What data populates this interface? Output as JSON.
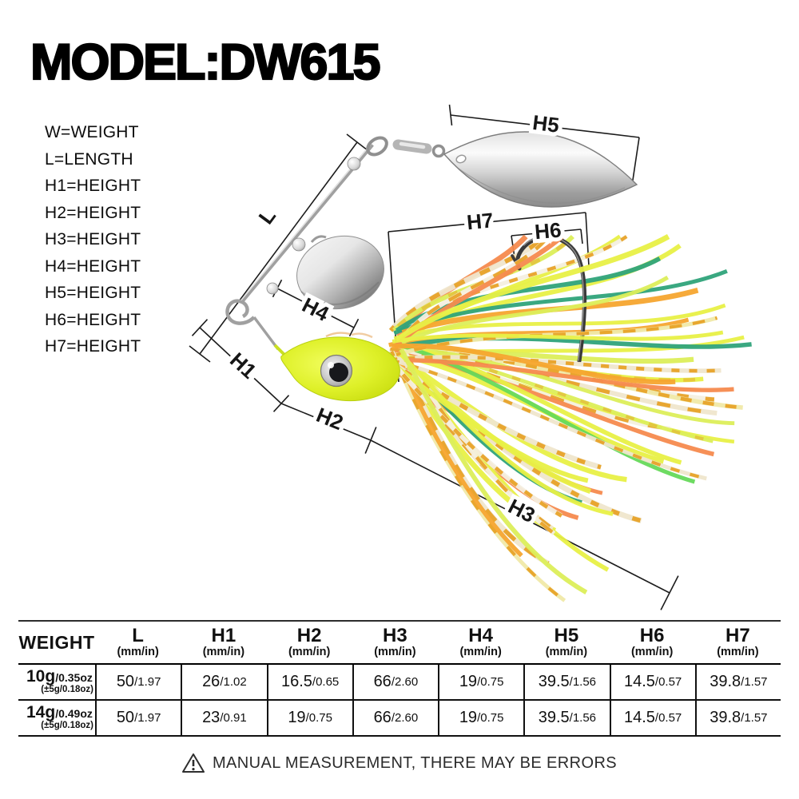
{
  "title": "MODEL:DW615",
  "legend": {
    "items": [
      "W=WEIGHT",
      "L=LENGTH",
      "H1=HEIGHT",
      "H2=HEIGHT",
      "H3=HEIGHT",
      "H4=HEIGHT",
      "H5=HEIGHT",
      "H6=HEIGHT",
      "H7=HEIGHT"
    ]
  },
  "diagram": {
    "labels": {
      "l": "L",
      "h1": "H1",
      "h2": "H2",
      "h3": "H3",
      "h4": "H4",
      "h5": "H5",
      "h6": "H6",
      "h7": "H7"
    }
  },
  "table": {
    "header": {
      "weight": "WEIGHT",
      "cols": [
        {
          "label": "L",
          "unit": "(mm/in)"
        },
        {
          "label": "H1",
          "unit": "(mm/in)"
        },
        {
          "label": "H2",
          "unit": "(mm/in)"
        },
        {
          "label": "H3",
          "unit": "(mm/in)"
        },
        {
          "label": "H4",
          "unit": "(mm/in)"
        },
        {
          "label": "H5",
          "unit": "(mm/in)"
        },
        {
          "label": "H6",
          "unit": "(mm/in)"
        },
        {
          "label": "H7",
          "unit": "(mm/in)"
        }
      ]
    },
    "rows": [
      {
        "weight_main": "10g",
        "weight_oz": "/0.35oz",
        "weight_tol": "(±5g/0.18oz)",
        "values": [
          {
            "main": "50",
            "sub": "/1.97"
          },
          {
            "main": "26",
            "sub": "/1.02"
          },
          {
            "main": "16.5",
            "sub": "/0.65"
          },
          {
            "main": "66",
            "sub": "/2.60"
          },
          {
            "main": "19",
            "sub": "/0.75"
          },
          {
            "main": "39.5",
            "sub": "/1.56"
          },
          {
            "main": "14.5",
            "sub": "/0.57"
          },
          {
            "main": "39.8",
            "sub": "/1.57"
          }
        ]
      },
      {
        "weight_main": "14g",
        "weight_oz": "/0.49oz",
        "weight_tol": "(±5g/0.18oz)",
        "values": [
          {
            "main": "50",
            "sub": "/1.97"
          },
          {
            "main": "23",
            "sub": "/0.91"
          },
          {
            "main": "19",
            "sub": "/0.75"
          },
          {
            "main": "66",
            "sub": "/2.60"
          },
          {
            "main": "19",
            "sub": "/0.75"
          },
          {
            "main": "39.5",
            "sub": "/1.56"
          },
          {
            "main": "14.5",
            "sub": "/0.57"
          },
          {
            "main": "39.8",
            "sub": "/1.57"
          }
        ]
      }
    ]
  },
  "footer": {
    "icon": "warning-triangle-icon",
    "warning": "MANUAL MEASUREMENT, THERE MAY BE ERRORS"
  },
  "colors": {
    "dim_line": "#1c1c1c",
    "head_chartreuse": "#d9ee1c",
    "hook": "#3a3a3a",
    "blade_silver": "#c9c9c9",
    "band_orange": "#e7a124",
    "skirt_palette": [
      {
        "c": "#e8f046",
        "w": 10,
        "band": 0.15
      },
      {
        "c": "#dcee5a",
        "w": 6,
        "band": 0.3
      },
      {
        "c": "#f0e9a8",
        "w": 6,
        "band": 0.9
      },
      {
        "c": "#efe6cc",
        "w": 9,
        "band": 1
      },
      {
        "c": "#f4efe0",
        "w": 5,
        "band": 1
      },
      {
        "c": "#f5a52f",
        "w": 4,
        "band": 0
      },
      {
        "c": "#f58a4e",
        "w": 4,
        "band": 0
      },
      {
        "c": "#66d95a",
        "w": 3,
        "band": 0
      },
      {
        "c": "#2fa37a",
        "w": 3,
        "band": 0
      },
      {
        "c": "#bfe97d",
        "w": 3,
        "band": 0.5
      }
    ]
  }
}
